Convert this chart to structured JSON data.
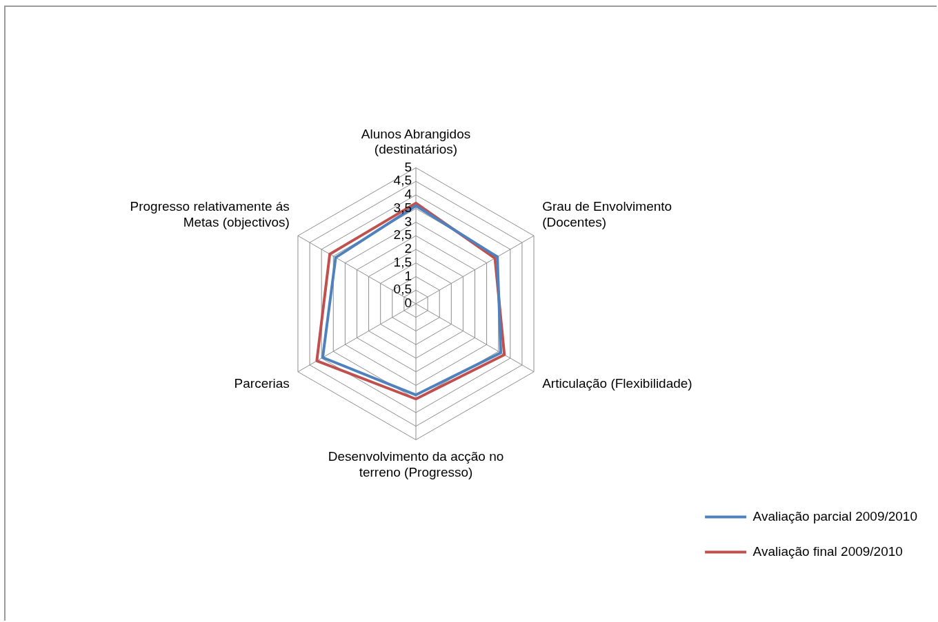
{
  "chart_data": {
    "type": "radar",
    "categories": [
      "Alunos Abrangidos (destinatários)",
      "Grau de Envolvimento (Docentes)",
      "Articulação (Flexibilidade)",
      "Desenvolvimento da acção no terreno (Progresso)",
      "Parcerias",
      "Progresso relativamente ás Metas (objectivos)"
    ],
    "series": [
      {
        "name": "Avaliação parcial 2009/2010",
        "color": "#4f81bd",
        "values": [
          3.6,
          3.45,
          3.6,
          3.35,
          3.95,
          3.4
        ]
      },
      {
        "name": "Avaliação final 2009/2010",
        "color": "#c0504d",
        "values": [
          3.7,
          3.35,
          3.75,
          3.5,
          4.2,
          3.65
        ]
      }
    ],
    "ylim": [
      0,
      5
    ],
    "yticks": [
      0,
      {
        "value": 0.5,
        "label": "0,5"
      },
      1,
      {
        "value": 1.5,
        "label": "1,5"
      },
      2,
      {
        "value": 2.5,
        "label": "2,5"
      },
      3,
      {
        "value": 3.5,
        "label": "3,5"
      },
      4,
      {
        "value": 4.5,
        "label": "4,5"
      },
      5
    ],
    "grid": true,
    "legend": "bottom right",
    "marker": "none"
  }
}
